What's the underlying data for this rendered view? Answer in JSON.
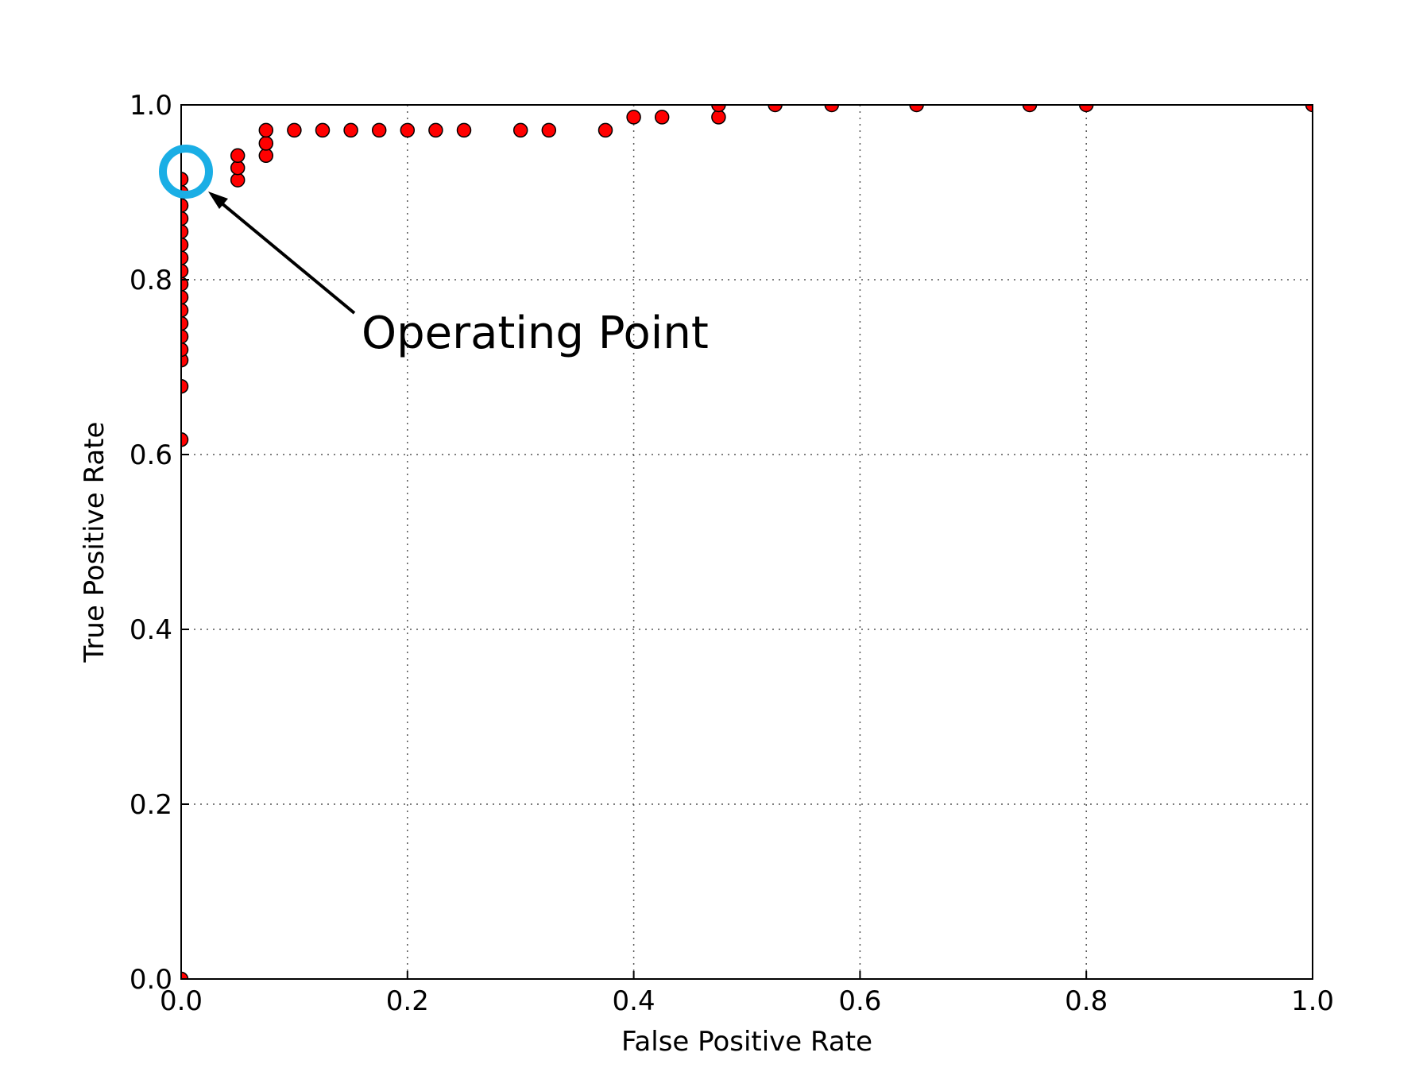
{
  "chart_data": {
    "type": "scatter",
    "xlabel": "False Positive Rate",
    "ylabel": "True Positive Rate",
    "annotation": "Operating Point",
    "x": [
      0,
      0,
      0,
      0,
      0,
      0,
      0,
      0,
      0,
      0,
      0,
      0,
      0,
      0,
      0,
      0,
      0,
      0,
      0.05,
      0.05,
      0.05,
      0.075,
      0.075,
      0.075,
      0.1,
      0.125,
      0.15,
      0.175,
      0.2,
      0.225,
      0.25,
      0.3,
      0.325,
      0.375,
      0.4,
      0.425,
      0.475,
      0.475,
      0.525,
      0.575,
      0.65,
      0.75,
      0.8,
      1.0
    ],
    "series": [
      {
        "color": "#ff0000",
        "values": [
          0,
          0.617,
          0.678,
          0.708,
          0.72,
          0.735,
          0.75,
          0.765,
          0.78,
          0.795,
          0.81,
          0.825,
          0.84,
          0.855,
          0.87,
          0.885,
          0.9,
          0.915,
          0.914,
          0.928,
          0.942,
          0.942,
          0.956,
          0.971,
          0.971,
          0.971,
          0.971,
          0.971,
          0.971,
          0.971,
          0.971,
          0.971,
          0.971,
          0.971,
          0.986,
          0.986,
          0.986,
          1.0,
          1.0,
          1.0,
          1.0,
          1.0,
          1.0,
          1.0
        ]
      }
    ],
    "xlim": [
      0,
      1
    ],
    "ylim": [
      0,
      1
    ],
    "xticks": [
      {
        "value": 0,
        "label": "0.0"
      },
      0.2,
      0.4,
      0.6,
      0.8,
      {
        "value": 1,
        "label": "1.0"
      }
    ],
    "yticks": [
      {
        "value": 0,
        "label": "0.0"
      },
      0.2,
      0.4,
      0.6,
      0.8,
      {
        "value": 1,
        "label": "1.0"
      }
    ],
    "grid": true
  }
}
